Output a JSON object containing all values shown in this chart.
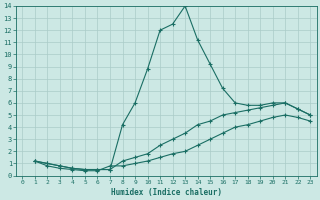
{
  "xlabel": "Humidex (Indice chaleur)",
  "bg_color": "#cce8e4",
  "line_color": "#1a6e64",
  "grid_color": "#aaccc8",
  "xlim": [
    -0.5,
    23.5
  ],
  "ylim": [
    0,
    14
  ],
  "xticks": [
    0,
    1,
    2,
    3,
    4,
    5,
    6,
    7,
    8,
    9,
    10,
    11,
    12,
    13,
    14,
    15,
    16,
    17,
    18,
    19,
    20,
    21,
    22,
    23
  ],
  "yticks": [
    0,
    1,
    2,
    3,
    4,
    5,
    6,
    7,
    8,
    9,
    10,
    11,
    12,
    13,
    14
  ],
  "curve_spike_x": [
    1,
    2,
    3,
    4,
    5,
    6,
    7,
    8,
    9,
    10,
    11,
    12,
    13,
    14,
    15,
    16,
    17,
    18,
    19,
    20,
    21,
    22,
    23
  ],
  "curve_spike_y": [
    1.2,
    1.0,
    0.8,
    0.6,
    0.5,
    0.5,
    0.5,
    4.2,
    6.0,
    8.8,
    12.0,
    12.5,
    14.0,
    11.2,
    9.2,
    7.2,
    6.0,
    5.8,
    5.8,
    6.0,
    6.0,
    5.5,
    5.0
  ],
  "curve_upper_x": [
    1,
    2,
    3,
    4,
    5,
    6,
    7,
    8,
    9,
    10,
    11,
    12,
    13,
    14,
    15,
    16,
    17,
    18,
    19,
    20,
    21,
    22,
    23
  ],
  "curve_upper_y": [
    1.2,
    1.0,
    0.8,
    0.6,
    0.5,
    0.5,
    0.5,
    1.2,
    1.5,
    1.8,
    2.5,
    3.0,
    3.5,
    4.2,
    4.5,
    5.0,
    5.2,
    5.4,
    5.6,
    5.8,
    6.0,
    5.5,
    5.0
  ],
  "curve_lower_x": [
    1,
    2,
    3,
    4,
    5,
    6,
    7,
    8,
    9,
    10,
    11,
    12,
    13,
    14,
    15,
    16,
    17,
    18,
    19,
    20,
    21,
    22,
    23
  ],
  "curve_lower_y": [
    1.2,
    0.8,
    0.6,
    0.5,
    0.4,
    0.4,
    0.8,
    0.8,
    1.0,
    1.2,
    1.5,
    1.8,
    2.0,
    2.5,
    3.0,
    3.5,
    4.0,
    4.2,
    4.5,
    4.8,
    5.0,
    4.8,
    4.5
  ]
}
